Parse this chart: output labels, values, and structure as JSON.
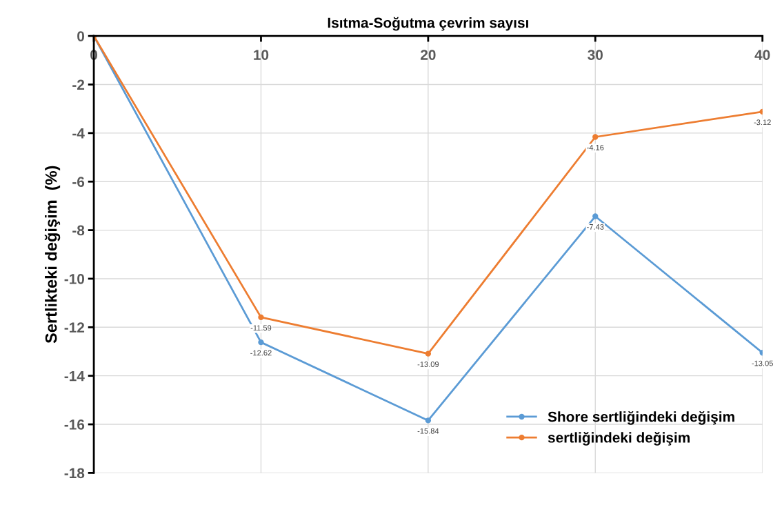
{
  "chart_data": {
    "type": "line",
    "xlabel": "Isıtma-Soğutma çevrim sayısı",
    "ylabel": "Sertlikteki değişim  (%)",
    "x": [
      0,
      10,
      20,
      30,
      40
    ],
    "series": [
      {
        "name": "Shore sertliğindeki değişim",
        "color": "#5b9bd5",
        "values": [
          0,
          -12.62,
          -15.84,
          -7.43,
          -13.05
        ],
        "value_labels": [
          null,
          "-12.62",
          "-15.84",
          "-7.43",
          "-13.05"
        ]
      },
      {
        "name": "sertliğindeki değişim",
        "color": "#ed7d31",
        "values": [
          0,
          -11.59,
          -13.09,
          -4.16,
          -3.12
        ],
        "value_labels": [
          null,
          "-11.59",
          "-13.09",
          "-4.16",
          "-3.12"
        ]
      }
    ],
    "xlim": [
      0,
      40
    ],
    "xticks": [
      0,
      10,
      20,
      30,
      40
    ],
    "ylim": [
      -18,
      0
    ],
    "yticks": [
      0,
      -2,
      -4,
      -6,
      -8,
      -10,
      -12,
      -14,
      -16,
      -18
    ],
    "grid": true,
    "legend": "bottom right",
    "marker": "circle",
    "line_style": "solid"
  }
}
